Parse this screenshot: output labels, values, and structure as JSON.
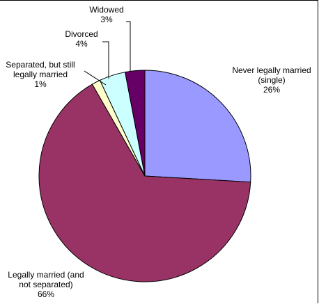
{
  "chart_data": {
    "type": "pie",
    "title": "",
    "slices": [
      {
        "label_lines": [
          "Never legally married",
          "(single)"
        ],
        "percent_label": "26%",
        "value": 26,
        "color": "#9999ff"
      },
      {
        "label_lines": [
          "Legally married (and",
          "not separated)"
        ],
        "percent_label": "66%",
        "value": 66,
        "color": "#993366"
      },
      {
        "label_lines": [
          "Separated, but still",
          "legally married"
        ],
        "percent_label": "1%",
        "value": 1.3,
        "color": "#ffffcc"
      },
      {
        "label_lines": [
          "Divorced"
        ],
        "percent_label": "4%",
        "value": 4,
        "color": "#ccffff"
      },
      {
        "label_lines": [
          "Widowed"
        ],
        "percent_label": "3%",
        "value": 3,
        "color": "#660066"
      }
    ],
    "start_angle_deg": 90,
    "direction": "clockwise",
    "legend": "none"
  }
}
